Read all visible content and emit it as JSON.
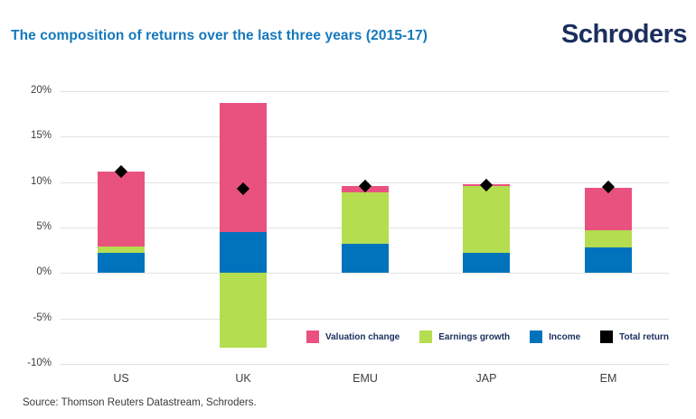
{
  "header": {
    "title": "The composition of returns over the last three years (2015-17)",
    "logo": "Schroders"
  },
  "chart_data": {
    "type": "bar",
    "stacked": true,
    "title": "The composition of returns over the last three years (2015-17)",
    "categories": [
      "US",
      "UK",
      "EMU",
      "JAP",
      "EM"
    ],
    "series": [
      {
        "name": "Income",
        "color": "#0073BC",
        "values": [
          2.2,
          4.5,
          3.2,
          2.2,
          2.8
        ]
      },
      {
        "name": "Earnings growth",
        "color": "#B4DD50",
        "values": [
          0.8,
          -8.2,
          5.7,
          7.4,
          1.9
        ]
      },
      {
        "name": "Valuation change",
        "color": "#E9527F",
        "values": [
          8.2,
          14.2,
          0.7,
          0.2,
          4.7
        ]
      }
    ],
    "markers": {
      "name": "Total return",
      "shape": "diamond",
      "color": "#000000",
      "values": [
        11.2,
        9.3,
        9.6,
        9.7,
        9.5
      ]
    },
    "ylim": [
      -10,
      20
    ],
    "ytick_step": 5,
    "ytick_suffix": "%",
    "ytick_labels": [
      "20%",
      "15%",
      "10%",
      "5%",
      "0%",
      "-5%",
      "-10%"
    ],
    "grid": true,
    "legend_position": "bottom-right"
  },
  "legend": {
    "items": [
      {
        "label": "Valuation change",
        "color": "#E9527F"
      },
      {
        "label": "Earnings growth",
        "color": "#B4DD50"
      },
      {
        "label": "Income",
        "color": "#0073BC"
      },
      {
        "label": "Total return",
        "color": "#000000"
      }
    ]
  },
  "footer": {
    "source": "Source: Thomson Reuters Datastream, Schroders."
  },
  "colors": {
    "title_blue": "#1478BD",
    "brand_navy": "#1B2F5E",
    "axis_text": "#404040",
    "gridline": "#E2E2E2",
    "source_text": "#3A3A3A"
  }
}
